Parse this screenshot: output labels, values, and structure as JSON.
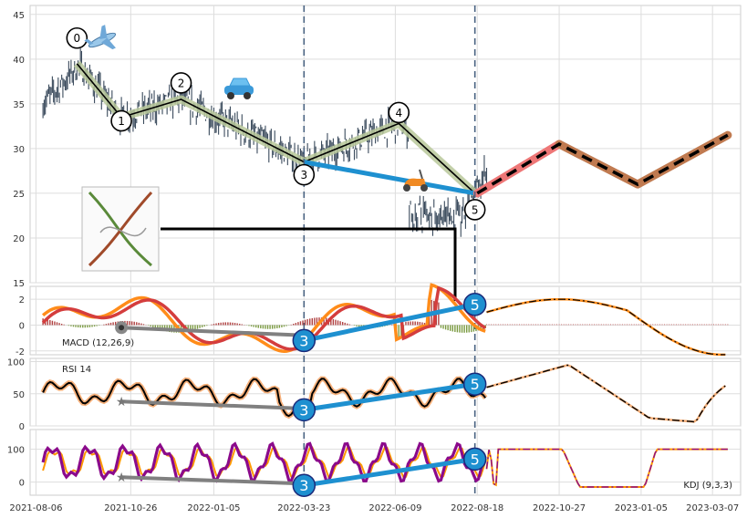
{
  "chart_data": {
    "type": "line",
    "x_ticks": [
      "2021-08-06",
      "2021-10-26",
      "2022-01-05",
      "2022-03-23",
      "2022-06-09",
      "2022-08-18",
      "2022-10-27",
      "2023-01-05",
      "2023-03-07"
    ],
    "price_panel": {
      "y_ticks": [
        15,
        20,
        25,
        30,
        35,
        40,
        45
      ],
      "ylim": [
        15,
        46
      ],
      "wave_labels": [
        "0",
        "1",
        "2",
        "3",
        "4",
        "5"
      ],
      "wave_points": [
        {
          "x": "2021-09-10",
          "y": 39.5
        },
        {
          "x": "2021-10-18",
          "y": 33.5
        },
        {
          "x": "2021-12-08",
          "y": 35.5
        },
        {
          "x": "2022-03-23",
          "y": 28.5
        },
        {
          "x": "2022-06-12",
          "y": 32.8
        },
        {
          "x": "2022-08-16",
          "y": 25.0
        }
      ],
      "projection": [
        {
          "x": "2022-08-18",
          "y": 25.0
        },
        {
          "x": "2022-10-27",
          "y": 30.5
        },
        {
          "x": "2023-01-02",
          "y": 26.0
        },
        {
          "x": "2023-03-20",
          "y": 31.5
        }
      ],
      "divergence_line": [
        {
          "x": "2022-03-23",
          "y": 28.5
        },
        {
          "x": "2022-08-16",
          "y": 25.0
        }
      ],
      "icons": [
        "airplane-icon",
        "car-icon",
        "scooter-icon"
      ]
    },
    "macd_panel": {
      "label": "MACD (12,26,9)",
      "y_ticks": [
        -2,
        0,
        2
      ],
      "ylim": [
        -2.3,
        3.0
      ],
      "divergence_labels": [
        "3",
        "5"
      ],
      "divergence_line": [
        {
          "x": "2022-03-23",
          "y": -1.2
        },
        {
          "x": "2022-08-16",
          "y": 1.6
        }
      ],
      "weak_line": [
        {
          "x": "2021-10-18",
          "y": -0.2
        },
        {
          "x": "2022-03-23",
          "y": -0.8
        }
      ]
    },
    "rsi_panel": {
      "label": "RSI 14",
      "y_ticks": [
        0,
        50,
        100
      ],
      "ylim": [
        0,
        105
      ],
      "divergence_labels": [
        "3",
        "5"
      ],
      "divergence_line": [
        {
          "x": "2022-03-23",
          "y": 25
        },
        {
          "x": "2022-08-16",
          "y": 65
        }
      ],
      "weak_line": [
        {
          "x": "2021-10-18",
          "y": 38
        },
        {
          "x": "2022-03-23",
          "y": 27
        }
      ]
    },
    "kdj_panel": {
      "label": "KDJ (9,3,3)",
      "y_ticks": [
        0,
        100
      ],
      "ylim": [
        -40,
        160
      ],
      "divergence_labels": [
        "3",
        "5"
      ],
      "divergence_line": [
        {
          "x": "2022-03-23",
          "y": -10
        },
        {
          "x": "2022-08-16",
          "y": 70
        }
      ],
      "weak_line": [
        {
          "x": "2021-10-18",
          "y": 15
        },
        {
          "x": "2022-03-23",
          "y": -5
        }
      ]
    },
    "colors": {
      "candle": "#3a4a5c",
      "wave_band": "#b8c89a",
      "divergence": "#1e90d0",
      "projection_up": "#ee7777",
      "projection_band": "#c07a50",
      "macd_fast": "#ff8c1a",
      "macd_slow": "#d43d3d",
      "rsi_line": "#000000",
      "rsi_band": "#f6b07a",
      "kdj_k": "#8b0a8b",
      "kdj_d": "#ff9900",
      "weak": "#808080"
    }
  }
}
